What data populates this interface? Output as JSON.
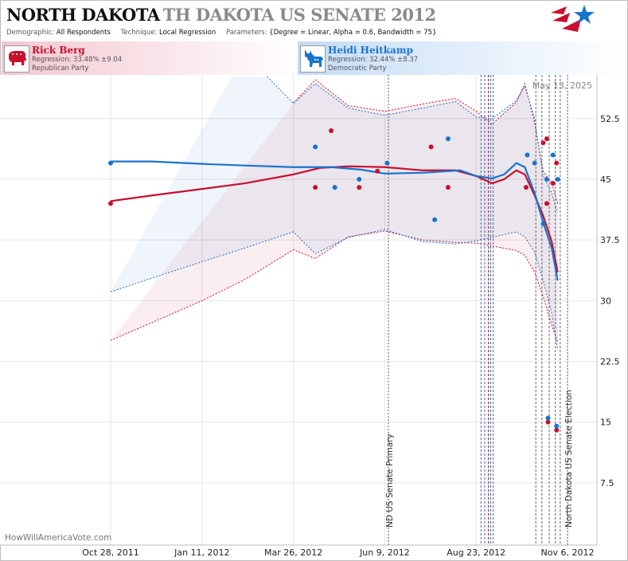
{
  "header": {
    "title_state": "NORTH DAKOTA",
    "title_race": "TH DAKOTA US SENATE 2012",
    "demographic_label": "Demographic:",
    "demographic_value": "All Respondents",
    "technique_label": "Technique:",
    "technique_value": "Local Regression",
    "parameters_label": "Parameters:",
    "parameters_value": "{Degree = Linear, Alpha = 0.6, Bandwidth = 75}"
  },
  "candidates": [
    {
      "name": "Rick Berg",
      "regression": "Regression: 33.48% ±9.04",
      "party": "Republican Party",
      "color": "#c8102e",
      "icon": "elephant-icon"
    },
    {
      "name": "Heidi Heitkamp",
      "regression": "Regression: 32.44% ±8.37",
      "party": "Democratic Party",
      "color": "#1874cd",
      "icon": "donkey-icon"
    }
  ],
  "watermark": "HowWillAmericaVote.com",
  "date_stamp": "May 13, 2025",
  "chart_data": {
    "type": "line",
    "x_axis": {
      "type": "date",
      "range": [
        "2011-10-28",
        "2012-11-06"
      ],
      "tick_labels": [
        "Oct 28, 2011",
        "Jan 11, 2012",
        "Mar 26, 2012",
        "Jun 9, 2012",
        "Aug 23, 2012",
        "Nov 6, 2012"
      ],
      "tick_dates": [
        "2011-10-28",
        "2012-01-11",
        "2012-03-26",
        "2012-06-09",
        "2012-08-23",
        "2012-11-06"
      ]
    },
    "y_axis": {
      "position": "right",
      "range": [
        0,
        57.5
      ],
      "ticks": [
        7.5,
        15,
        22.5,
        30,
        37.5,
        45,
        52.5
      ]
    },
    "grid": true,
    "annotations": [
      {
        "date": "2012-06-12",
        "text": "ND US Senate Primary"
      },
      {
        "date": "2012-11-06",
        "text": "North Dakota US Senate Election"
      }
    ],
    "event_lines": [
      {
        "date": "2012-08-27",
        "color": "#666666"
      },
      {
        "date": "2012-08-30",
        "color": "#1874cd"
      },
      {
        "date": "2012-09-02",
        "color": "#c8102e"
      },
      {
        "date": "2012-09-04",
        "color": "#1874cd"
      },
      {
        "date": "2012-09-06",
        "color": "#666666"
      },
      {
        "date": "2012-10-11",
        "color": "#666666"
      },
      {
        "date": "2012-10-16",
        "color": "#666666"
      },
      {
        "date": "2012-10-22",
        "color": "#666666"
      },
      {
        "date": "2012-10-27",
        "color": "#666666"
      },
      {
        "date": "2012-10-31",
        "color": "#666666"
      }
    ],
    "series": [
      {
        "name": "Rick Berg",
        "color": "#c8102e",
        "polls": [
          {
            "x": "2011-10-28",
            "y": 42
          },
          {
            "x": "2012-04-13",
            "y": 44
          },
          {
            "x": "2012-04-26",
            "y": 51
          },
          {
            "x": "2012-05-19",
            "y": 44
          },
          {
            "x": "2012-06-03",
            "y": 46
          },
          {
            "x": "2012-07-17",
            "y": 49
          },
          {
            "x": "2012-07-31",
            "y": 44
          },
          {
            "x": "2012-10-03",
            "y": 44
          },
          {
            "x": "2012-10-17",
            "y": 49.5
          },
          {
            "x": "2012-10-20",
            "y": 50
          },
          {
            "x": "2012-10-20",
            "y": 42
          },
          {
            "x": "2012-10-25",
            "y": 44.5
          },
          {
            "x": "2012-10-28",
            "y": 47
          },
          {
            "x": "2012-10-21",
            "y": 15
          },
          {
            "x": "2012-10-28",
            "y": 14
          }
        ],
        "trend": [
          {
            "x": "2011-10-28",
            "y": 42.3
          },
          {
            "x": "2011-12-01",
            "y": 43
          },
          {
            "x": "2012-01-11",
            "y": 43.8
          },
          {
            "x": "2012-02-15",
            "y": 44.5
          },
          {
            "x": "2012-03-26",
            "y": 45.6
          },
          {
            "x": "2012-04-17",
            "y": 46.4
          },
          {
            "x": "2012-05-10",
            "y": 46.6
          },
          {
            "x": "2012-06-09",
            "y": 46.5
          },
          {
            "x": "2012-07-10",
            "y": 46.1
          },
          {
            "x": "2012-08-06",
            "y": 46.1
          },
          {
            "x": "2012-08-23",
            "y": 45.4
          },
          {
            "x": "2012-09-05",
            "y": 44.5
          },
          {
            "x": "2012-09-15",
            "y": 45
          },
          {
            "x": "2012-09-25",
            "y": 46.1
          },
          {
            "x": "2012-10-02",
            "y": 45.6
          },
          {
            "x": "2012-10-10",
            "y": 43
          },
          {
            "x": "2012-10-17",
            "y": 40.5
          },
          {
            "x": "2012-10-24",
            "y": 37.3
          },
          {
            "x": "2012-10-29",
            "y": 33.5
          }
        ],
        "band_upper": [
          {
            "x": "2012-03-26",
            "y": 54.4
          },
          {
            "x": "2012-04-13",
            "y": 57.3
          },
          {
            "x": "2012-05-10",
            "y": 54.1
          },
          {
            "x": "2012-06-09",
            "y": 53.4
          },
          {
            "x": "2012-07-10",
            "y": 54.3
          },
          {
            "x": "2012-08-06",
            "y": 55
          },
          {
            "x": "2012-08-23",
            "y": 53.4
          },
          {
            "x": "2012-09-05",
            "y": 51.8
          },
          {
            "x": "2012-09-25",
            "y": 54.5
          },
          {
            "x": "2012-10-02",
            "y": 56.8
          },
          {
            "x": "2012-10-10",
            "y": 52
          },
          {
            "x": "2012-10-17",
            "y": 46
          },
          {
            "x": "2012-10-24",
            "y": 44.5
          },
          {
            "x": "2012-10-29",
            "y": 42
          }
        ],
        "band_lower": [
          {
            "x": "2011-10-28",
            "y": 25.1
          },
          {
            "x": "2011-12-01",
            "y": 27.3
          },
          {
            "x": "2012-01-11",
            "y": 30
          },
          {
            "x": "2012-02-15",
            "y": 32.6
          },
          {
            "x": "2012-03-26",
            "y": 36.3
          },
          {
            "x": "2012-04-13",
            "y": 35.2
          },
          {
            "x": "2012-05-10",
            "y": 37.9
          },
          {
            "x": "2012-06-09",
            "y": 38.6
          },
          {
            "x": "2012-07-10",
            "y": 37.5
          },
          {
            "x": "2012-08-06",
            "y": 37.2
          },
          {
            "x": "2012-08-23",
            "y": 37.1
          },
          {
            "x": "2012-09-25",
            "y": 36.2
          },
          {
            "x": "2012-10-02",
            "y": 35.6
          },
          {
            "x": "2012-10-10",
            "y": 33.5
          },
          {
            "x": "2012-10-17",
            "y": 30.5
          },
          {
            "x": "2012-10-24",
            "y": 27
          },
          {
            "x": "2012-10-29",
            "y": 24.8
          }
        ]
      },
      {
        "name": "Heidi Heitkamp",
        "color": "#1874cd",
        "polls": [
          {
            "x": "2011-10-28",
            "y": 47
          },
          {
            "x": "2012-04-13",
            "y": 49
          },
          {
            "x": "2012-04-29",
            "y": 44
          },
          {
            "x": "2012-05-19",
            "y": 45
          },
          {
            "x": "2012-06-11",
            "y": 47
          },
          {
            "x": "2012-07-20",
            "y": 40
          },
          {
            "x": "2012-07-31",
            "y": 50
          },
          {
            "x": "2012-10-04",
            "y": 48
          },
          {
            "x": "2012-10-10",
            "y": 47
          },
          {
            "x": "2012-10-17",
            "y": 39.5
          },
          {
            "x": "2012-10-20",
            "y": 45
          },
          {
            "x": "2012-10-25",
            "y": 48
          },
          {
            "x": "2012-10-29",
            "y": 45
          },
          {
            "x": "2012-10-21",
            "y": 15.5
          },
          {
            "x": "2012-10-28",
            "y": 14.5
          }
        ],
        "trend": [
          {
            "x": "2011-10-28",
            "y": 47.2
          },
          {
            "x": "2011-12-01",
            "y": 47.2
          },
          {
            "x": "2012-01-11",
            "y": 46.9
          },
          {
            "x": "2012-02-15",
            "y": 46.7
          },
          {
            "x": "2012-03-26",
            "y": 46.5
          },
          {
            "x": "2012-04-26",
            "y": 46.5
          },
          {
            "x": "2012-05-20",
            "y": 46.2
          },
          {
            "x": "2012-06-09",
            "y": 45.7
          },
          {
            "x": "2012-07-10",
            "y": 45.8
          },
          {
            "x": "2012-08-10",
            "y": 46.1
          },
          {
            "x": "2012-08-23",
            "y": 45.4
          },
          {
            "x": "2012-09-05",
            "y": 45.1
          },
          {
            "x": "2012-09-15",
            "y": 45.6
          },
          {
            "x": "2012-09-25",
            "y": 47
          },
          {
            "x": "2012-10-02",
            "y": 46.5
          },
          {
            "x": "2012-10-10",
            "y": 43.3
          },
          {
            "x": "2012-10-17",
            "y": 39.7
          },
          {
            "x": "2012-10-24",
            "y": 36.5
          },
          {
            "x": "2012-10-29",
            "y": 32.5
          }
        ],
        "band_upper": [
          {
            "x": "2012-02-15",
            "y": 60.5
          },
          {
            "x": "2012-03-26",
            "y": 54.4
          },
          {
            "x": "2012-04-13",
            "y": 56.8
          },
          {
            "x": "2012-05-10",
            "y": 53.8
          },
          {
            "x": "2012-06-09",
            "y": 52.9
          },
          {
            "x": "2012-07-10",
            "y": 53.8
          },
          {
            "x": "2012-08-06",
            "y": 54.6
          },
          {
            "x": "2012-08-23",
            "y": 52.7
          },
          {
            "x": "2012-09-05",
            "y": 52.5
          },
          {
            "x": "2012-09-25",
            "y": 54.7
          },
          {
            "x": "2012-10-02",
            "y": 56.5
          },
          {
            "x": "2012-10-10",
            "y": 52.5
          },
          {
            "x": "2012-10-17",
            "y": 45.4
          },
          {
            "x": "2012-10-24",
            "y": 43.3
          },
          {
            "x": "2012-10-29",
            "y": 40.9
          }
        ],
        "band_lower": [
          {
            "x": "2011-10-28",
            "y": 31.1
          },
          {
            "x": "2011-12-01",
            "y": 32.8
          },
          {
            "x": "2012-01-11",
            "y": 34.8
          },
          {
            "x": "2012-02-15",
            "y": 36.5
          },
          {
            "x": "2012-03-26",
            "y": 38.5
          },
          {
            "x": "2012-04-13",
            "y": 35.8
          },
          {
            "x": "2012-05-10",
            "y": 37.8
          },
          {
            "x": "2012-06-09",
            "y": 38.8
          },
          {
            "x": "2012-07-10",
            "y": 37.3
          },
          {
            "x": "2012-08-06",
            "y": 37
          },
          {
            "x": "2012-08-23",
            "y": 37.4
          },
          {
            "x": "2012-09-25",
            "y": 38.5
          },
          {
            "x": "2012-10-02",
            "y": 37.9
          },
          {
            "x": "2012-10-10",
            "y": 36
          },
          {
            "x": "2012-10-17",
            "y": 32.5
          },
          {
            "x": "2012-10-24",
            "y": 28.5
          },
          {
            "x": "2012-10-29",
            "y": 23.9
          }
        ]
      }
    ]
  }
}
